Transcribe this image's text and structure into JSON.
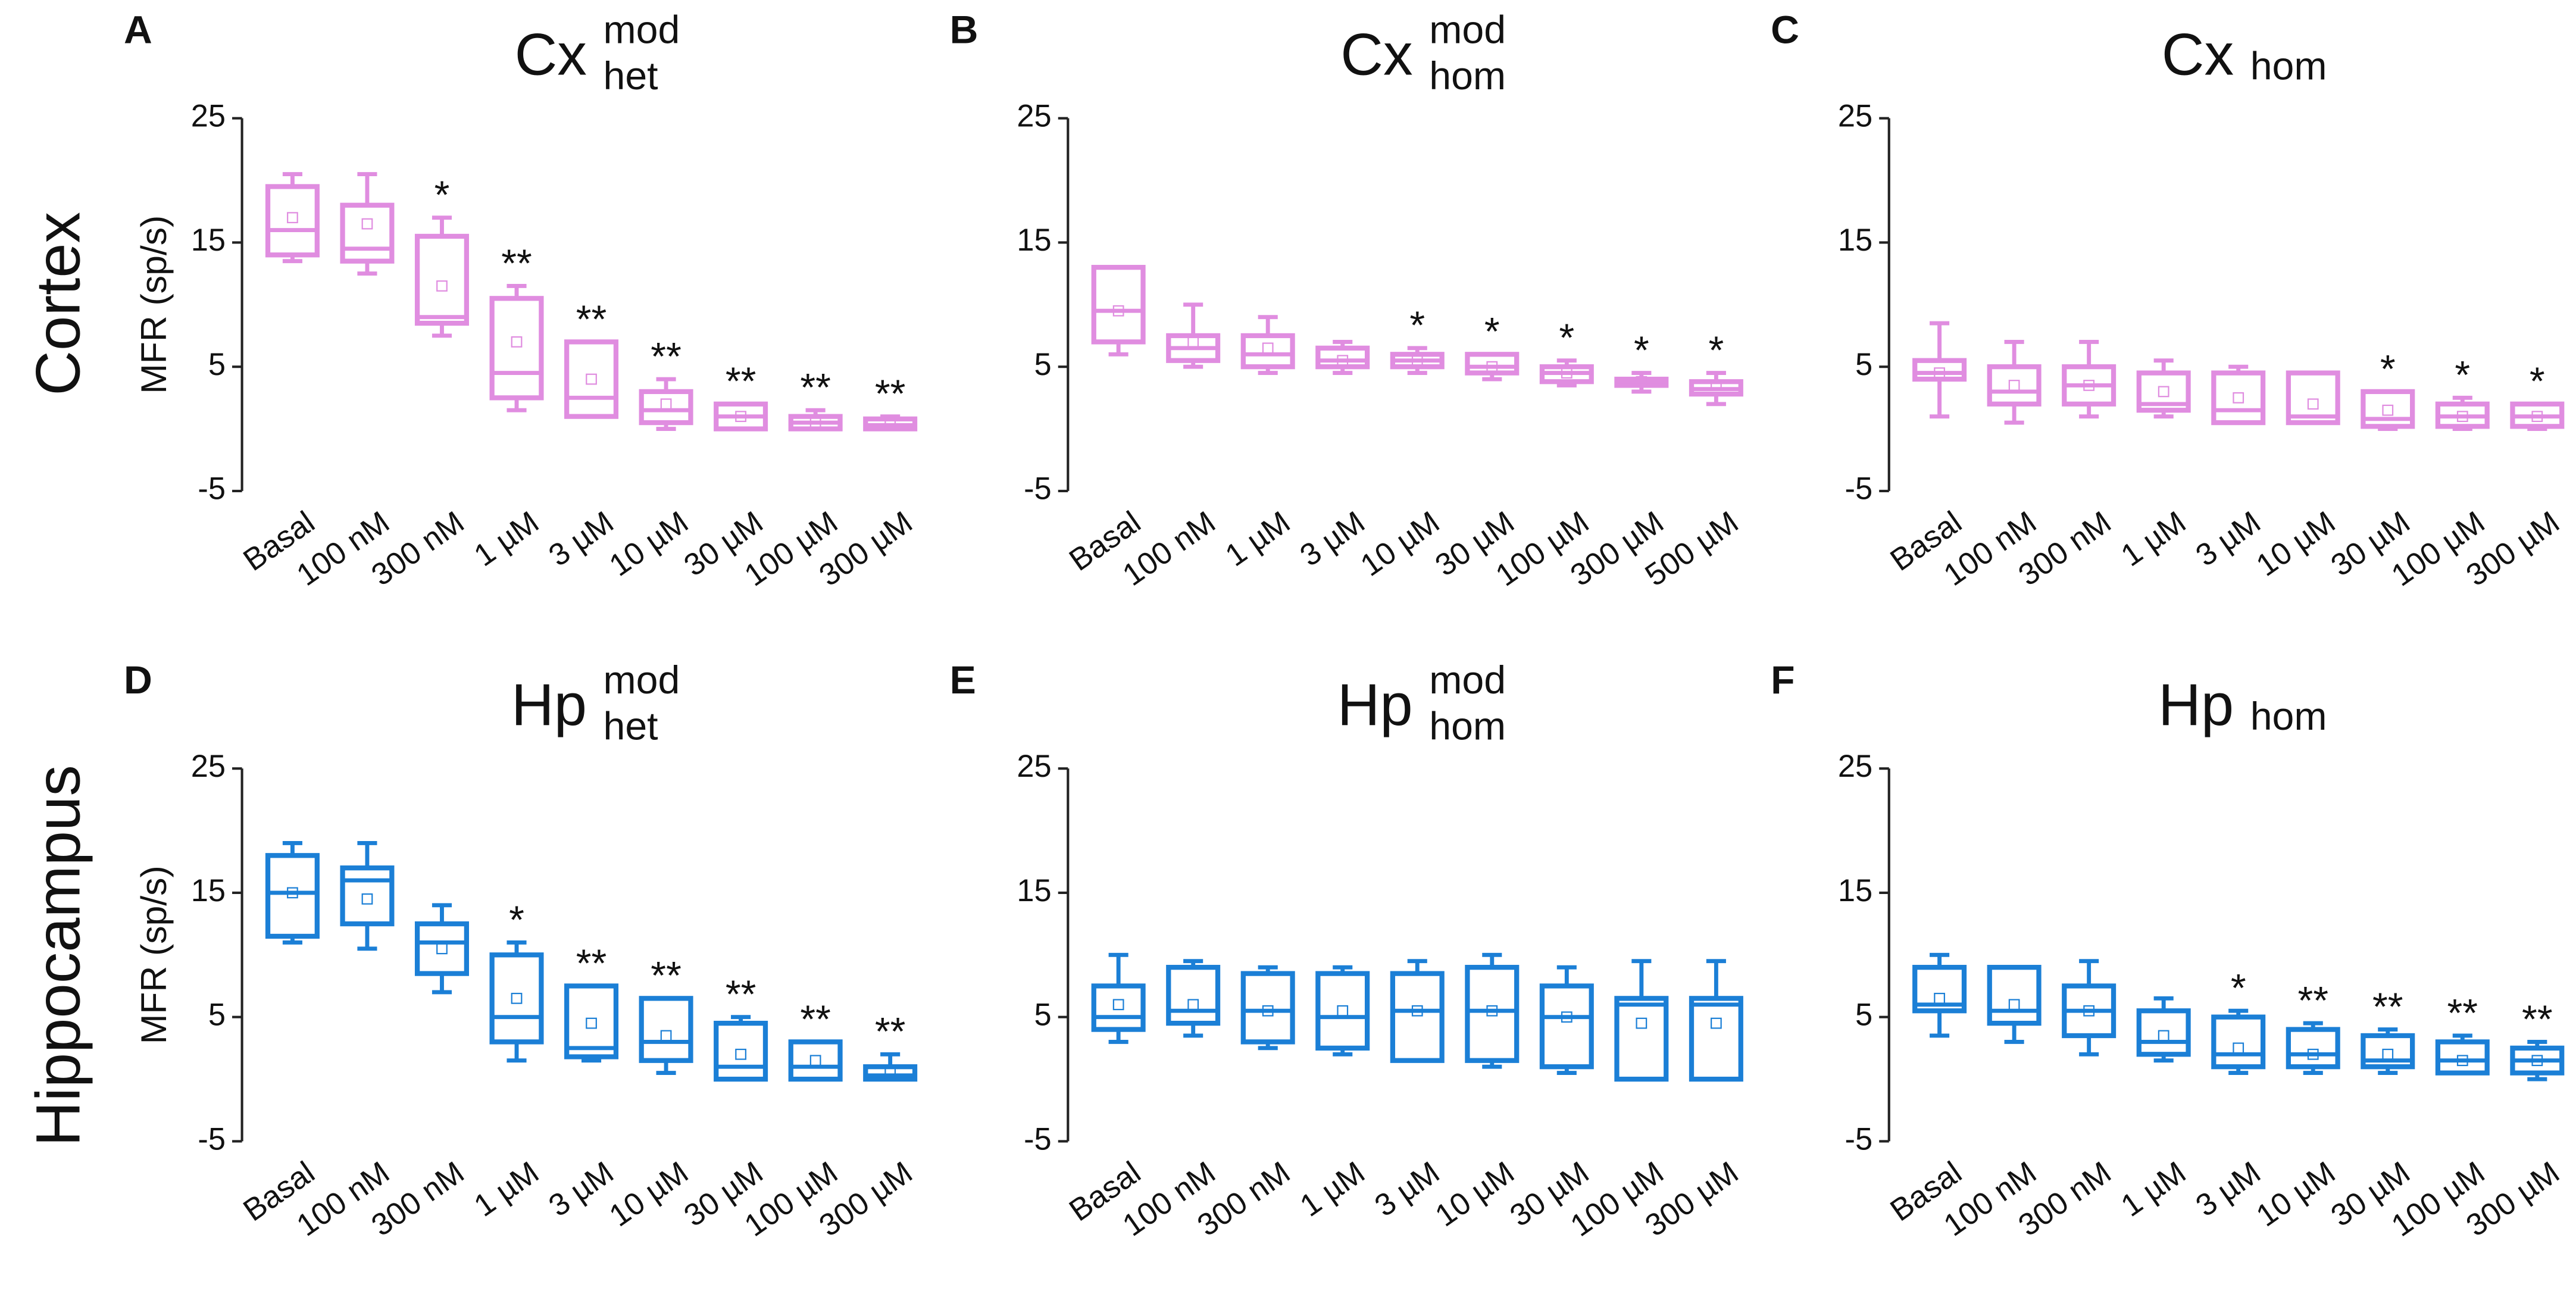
{
  "row_labels": [
    "Cortex",
    "Hippocampus"
  ],
  "chart_data": [
    {
      "type": "box",
      "panel_label": "A",
      "title": "Cx",
      "title_sup": "mod",
      "title_sub": "het",
      "ylabel": "MFR (sp/s)",
      "color": "#e08de0",
      "categories": [
        "Basal",
        "100 nM",
        "300 nM",
        "1 µM",
        "3 µM",
        "10 µM",
        "30 µM",
        "100 µM",
        "300 µM"
      ],
      "min": [
        13.5,
        12.5,
        7.5,
        1.5,
        1,
        0,
        0,
        0,
        0
      ],
      "q1": [
        14,
        13.5,
        8.5,
        2.5,
        1,
        0.5,
        0,
        0,
        0
      ],
      "median": [
        16,
        14.5,
        9,
        4.5,
        2.5,
        1.5,
        1,
        0.5,
        0.3
      ],
      "q3": [
        19.5,
        18,
        15.5,
        10.5,
        7,
        3,
        2,
        1,
        0.8
      ],
      "max": [
        20.5,
        20.5,
        17,
        11.5,
        7,
        4,
        2,
        1.5,
        1
      ],
      "mean": [
        17,
        16.5,
        11.5,
        7,
        4,
        2,
        1,
        0.5,
        0.5
      ],
      "annotations": [
        null,
        null,
        "*",
        "**",
        "**",
        "**",
        "**",
        "**",
        "**"
      ],
      "ylim": [
        -5,
        25
      ],
      "yticks": [
        -5,
        5,
        15,
        25
      ]
    },
    {
      "type": "box",
      "panel_label": "B",
      "title": "Cx",
      "title_sup": "mod",
      "title_sub": "hom",
      "color": "#e08de0",
      "categories": [
        "Basal",
        "100 nM",
        "1 µM",
        "3 µM",
        "10 µM",
        "30 µM",
        "100 µM",
        "300 µM",
        "500 µM"
      ],
      "min": [
        6,
        5,
        4.5,
        4.5,
        4.5,
        4,
        3.5,
        3,
        2
      ],
      "q1": [
        7,
        5.5,
        5,
        5,
        5,
        4.5,
        3.8,
        3.5,
        2.8
      ],
      "median": [
        9.5,
        6.5,
        6,
        5.5,
        5.5,
        5,
        4.5,
        3.8,
        3.2
      ],
      "q3": [
        13,
        7.5,
        7.5,
        6.5,
        6,
        6,
        5,
        4,
        3.8
      ],
      "max": [
        13,
        10,
        9,
        7,
        6.5,
        6,
        5.5,
        4.5,
        4.5
      ],
      "mean": [
        9.5,
        7,
        6.5,
        5.5,
        5.5,
        5,
        4.5,
        3.8,
        3.5
      ],
      "annotations": [
        null,
        null,
        null,
        null,
        "*",
        "*",
        "*",
        "*",
        "*"
      ],
      "ylim": [
        -5,
        25
      ],
      "yticks": [
        -5,
        5,
        15,
        25
      ]
    },
    {
      "type": "box",
      "panel_label": "C",
      "title": "Cx",
      "title_sub": "hom",
      "color": "#e08de0",
      "categories": [
        "Basal",
        "100 nM",
        "300 nM",
        "1 µM",
        "3 µM",
        "10 µM",
        "30 µM",
        "100 µM",
        "300 µM"
      ],
      "min": [
        1,
        0.5,
        1,
        1,
        0.5,
        0.5,
        0,
        0,
        0
      ],
      "q1": [
        4,
        2,
        2,
        1.5,
        0.5,
        0.5,
        0.2,
        0.2,
        0.2
      ],
      "median": [
        4.5,
        3,
        3.5,
        2,
        1.5,
        1,
        0.8,
        1,
        1
      ],
      "q3": [
        5.5,
        5,
        5,
        4.5,
        4.5,
        4.5,
        3,
        2,
        2
      ],
      "max": [
        8.5,
        7,
        7,
        5.5,
        5,
        4.5,
        3,
        2.5,
        2
      ],
      "mean": [
        4.5,
        3.5,
        3.5,
        3,
        2.5,
        2,
        1.5,
        1,
        1
      ],
      "annotations": [
        null,
        null,
        null,
        null,
        null,
        null,
        "*",
        "*",
        "*"
      ],
      "ylim": [
        -5,
        25
      ],
      "yticks": [
        -5,
        5,
        15,
        25
      ]
    },
    {
      "type": "box",
      "panel_label": "D",
      "title": "Hp",
      "title_sup": "mod",
      "title_sub": "het",
      "ylabel": "MFR (sp/s)",
      "color": "#1b7fd6",
      "categories": [
        "Basal",
        "100 nM",
        "300 nM",
        "1 µM",
        "3 µM",
        "10 µM",
        "30 µM",
        "100 µM",
        "300 µM"
      ],
      "min": [
        11,
        10.5,
        7,
        1.5,
        1.5,
        0.5,
        0,
        0,
        0
      ],
      "q1": [
        11.5,
        12.5,
        8.5,
        3,
        1.8,
        1.5,
        0,
        0,
        0
      ],
      "median": [
        15,
        16,
        11,
        5,
        2.5,
        3,
        1,
        1,
        0.3
      ],
      "q3": [
        18,
        17,
        12.5,
        10,
        7.5,
        6.5,
        4.5,
        3,
        1
      ],
      "max": [
        19,
        19,
        14,
        11,
        7.5,
        6.5,
        5,
        3,
        2
      ],
      "mean": [
        15,
        14.5,
        10.5,
        6.5,
        4.5,
        3.5,
        2,
        1.5,
        0.5
      ],
      "annotations": [
        null,
        null,
        null,
        "*",
        "**",
        "**",
        "**",
        "**",
        "**"
      ],
      "ylim": [
        -5,
        25
      ],
      "yticks": [
        -5,
        5,
        15,
        25
      ]
    },
    {
      "type": "box",
      "panel_label": "E",
      "title": "Hp",
      "title_sup": "mod",
      "title_sub": "hom",
      "color": "#1b7fd6",
      "categories": [
        "Basal",
        "100 nM",
        "300 nM",
        "1 µM",
        "3 µM",
        "10 µM",
        "30 µM",
        "100 µM",
        "300 µM"
      ],
      "min": [
        3,
        3.5,
        2.5,
        2,
        1.5,
        1,
        0.5,
        0,
        0
      ],
      "q1": [
        4,
        4.5,
        3,
        2.5,
        1.5,
        1.5,
        1,
        0,
        0
      ],
      "median": [
        5,
        5.5,
        5.5,
        5,
        5.5,
        5.5,
        5,
        6,
        6
      ],
      "q3": [
        7.5,
        9,
        8.5,
        8.5,
        8.5,
        9,
        7.5,
        6.5,
        6.5
      ],
      "max": [
        10,
        9.5,
        9,
        9,
        9.5,
        10,
        9,
        9.5,
        9.5
      ],
      "mean": [
        6,
        6,
        5.5,
        5.5,
        5.5,
        5.5,
        5,
        4.5,
        4.5
      ],
      "annotations": [
        null,
        null,
        null,
        null,
        null,
        null,
        null,
        null,
        null
      ],
      "ylim": [
        -5,
        25
      ],
      "yticks": [
        -5,
        5,
        15,
        25
      ]
    },
    {
      "type": "box",
      "panel_label": "F",
      "title": "Hp",
      "title_sub": "hom",
      "color": "#1b7fd6",
      "categories": [
        "Basal",
        "100 nM",
        "300 nM",
        "1 µM",
        "3 µM",
        "10 µM",
        "30 µM",
        "100 µM",
        "300 µM"
      ],
      "min": [
        3.5,
        3,
        2,
        1.5,
        0.5,
        0.5,
        0.5,
        0.5,
        0
      ],
      "q1": [
        5.5,
        4.5,
        3.5,
        2,
        1,
        1,
        1,
        0.5,
        0.5
      ],
      "median": [
        6,
        5.5,
        5.5,
        3,
        2,
        2,
        1.5,
        1.5,
        1.5
      ],
      "q3": [
        9,
        9,
        7.5,
        5.5,
        5,
        4,
        3.5,
        3,
        2.5
      ],
      "max": [
        10,
        9,
        9.5,
        6.5,
        5.5,
        4.5,
        4,
        3.5,
        3
      ],
      "mean": [
        6.5,
        6,
        5.5,
        3.5,
        2.5,
        2,
        2,
        1.5,
        1.5
      ],
      "annotations": [
        null,
        null,
        null,
        null,
        "*",
        "**",
        "**",
        "**",
        "**"
      ],
      "ylim": [
        -5,
        25
      ],
      "yticks": [
        -5,
        5,
        15,
        25
      ]
    }
  ]
}
